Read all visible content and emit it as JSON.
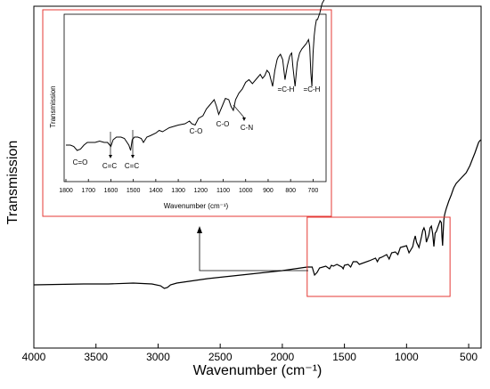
{
  "chart_data": [
    {
      "type": "line",
      "role": "main",
      "xlabel": "Wavenumber (cm⁻¹)",
      "ylabel": "Transmission",
      "xlim": [
        4000,
        400
      ],
      "x_reversed": true,
      "xticks": [
        4000,
        3500,
        3000,
        2500,
        2000,
        1500,
        1000,
        500
      ],
      "y_tick_labels": false,
      "grid": false,
      "highlight_region": [
        1800,
        650
      ],
      "series": [
        {
          "x": [
            4000,
            3600,
            3400,
            3200,
            3050,
            2980,
            2950,
            2925,
            2900,
            2850,
            2800,
            2600,
            2400,
            2200,
            2000,
            1900,
            1800,
            1760,
            1740,
            1720,
            1700,
            1650,
            1620,
            1605,
            1590,
            1560,
            1520,
            1510,
            1500,
            1470,
            1450,
            1430,
            1400,
            1380,
            1300,
            1250,
            1235,
            1220,
            1200,
            1160,
            1140,
            1120,
            1090,
            1070,
            1050,
            1000,
            980,
            950,
            940,
            930,
            920,
            900,
            880,
            870,
            860,
            850,
            840,
            820,
            810,
            800,
            790,
            780,
            770,
            760,
            750,
            740,
            730,
            720,
            715,
            710,
            705,
            700,
            695,
            690,
            680,
            660,
            640,
            620,
            600,
            560,
            520,
            490,
            470,
            450,
            430,
            420,
            410,
            400
          ],
          "y": [
            0.02,
            0.03,
            0.03,
            0.04,
            0.03,
            0.01,
            -0.02,
            -0.01,
            0.02,
            0.04,
            0.05,
            0.09,
            0.12,
            0.15,
            0.18,
            0.2,
            0.22,
            0.22,
            0.13,
            0.16,
            0.21,
            0.23,
            0.2,
            0.24,
            0.23,
            0.25,
            0.22,
            0.2,
            0.24,
            0.25,
            0.22,
            0.28,
            0.28,
            0.25,
            0.29,
            0.32,
            0.28,
            0.32,
            0.33,
            0.36,
            0.31,
            0.38,
            0.39,
            0.36,
            0.44,
            0.46,
            0.38,
            0.45,
            0.52,
            0.57,
            0.5,
            0.44,
            0.56,
            0.63,
            0.66,
            0.62,
            0.5,
            0.58,
            0.66,
            0.68,
            0.6,
            0.45,
            0.6,
            0.62,
            0.66,
            0.7,
            0.74,
            0.72,
            0.56,
            0.46,
            0.62,
            0.75,
            0.8,
            0.83,
            0.88,
            0.96,
            1.03,
            1.11,
            1.16,
            1.22,
            1.28,
            1.36,
            1.43,
            1.5,
            1.58,
            1.62,
            1.64,
            1.65
          ]
        }
      ]
    },
    {
      "type": "line",
      "role": "inset",
      "xlabel": "Wavenumber (cm⁻¹)",
      "ylabel": "Transmission",
      "xlim": [
        1800,
        650
      ],
      "x_reversed": true,
      "xticks": [
        1800,
        1700,
        1600,
        1500,
        1400,
        1300,
        1200,
        1100,
        1000,
        900,
        800,
        700
      ],
      "y_tick_labels": false,
      "grid": false,
      "series": [
        {
          "x": [
            1800,
            1780,
            1765,
            1750,
            1735,
            1720,
            1705,
            1690,
            1670,
            1650,
            1630,
            1615,
            1600,
            1590,
            1575,
            1555,
            1540,
            1520,
            1512,
            1505,
            1495,
            1480,
            1465,
            1455,
            1440,
            1425,
            1400,
            1385,
            1370,
            1340,
            1300,
            1270,
            1250,
            1240,
            1225,
            1210,
            1190,
            1175,
            1160,
            1140,
            1130,
            1120,
            1105,
            1090,
            1075,
            1065,
            1055,
            1045,
            1030,
            1015,
            1000,
            985,
            970,
            955,
            940,
            935,
            925,
            915,
            905,
            895,
            880,
            870,
            860,
            855,
            845,
            835,
            825,
            815,
            805,
            800,
            795,
            790,
            780,
            770,
            760,
            750,
            740,
            730,
            720,
            715,
            710,
            705,
            700,
            695,
            690,
            685,
            680,
            670,
            660,
            650
          ],
          "y": [
            0.06,
            0.06,
            0.05,
            0.02,
            0.03,
            0.06,
            0.08,
            0.08,
            0.08,
            0.09,
            0.08,
            0.08,
            0.05,
            0.1,
            0.12,
            0.12,
            0.11,
            0.06,
            0.02,
            0.1,
            0.12,
            0.12,
            0.11,
            0.08,
            0.12,
            0.13,
            0.15,
            0.17,
            0.16,
            0.19,
            0.21,
            0.22,
            0.24,
            0.22,
            0.21,
            0.26,
            0.28,
            0.33,
            0.36,
            0.4,
            0.35,
            0.29,
            0.35,
            0.41,
            0.4,
            0.35,
            0.32,
            0.4,
            0.45,
            0.48,
            0.53,
            0.55,
            0.52,
            0.55,
            0.58,
            0.59,
            0.56,
            0.58,
            0.62,
            0.6,
            0.5,
            0.62,
            0.7,
            0.72,
            0.74,
            0.7,
            0.55,
            0.65,
            0.72,
            0.74,
            0.75,
            0.65,
            0.5,
            0.68,
            0.75,
            0.78,
            0.8,
            0.82,
            0.85,
            0.8,
            0.6,
            0.5,
            0.75,
            0.88,
            0.95,
            1.0,
            1.0,
            1.05,
            1.12,
            1.15
          ]
        }
      ],
      "annotations": [
        {
          "text": "C=O",
          "x": 1730
        },
        {
          "text": "C=C",
          "x": 1600,
          "arrow": true
        },
        {
          "text": "C=C",
          "x": 1510,
          "arrow": true
        },
        {
          "text": "C-O",
          "x": 1200
        },
        {
          "text": "C-O",
          "x": 1110
        },
        {
          "text": "C-N",
          "x": 1040,
          "arrow": true
        },
        {
          "text": "=C-H",
          "x": 830
        },
        {
          "text": "=C-H",
          "x": 720
        }
      ]
    }
  ]
}
